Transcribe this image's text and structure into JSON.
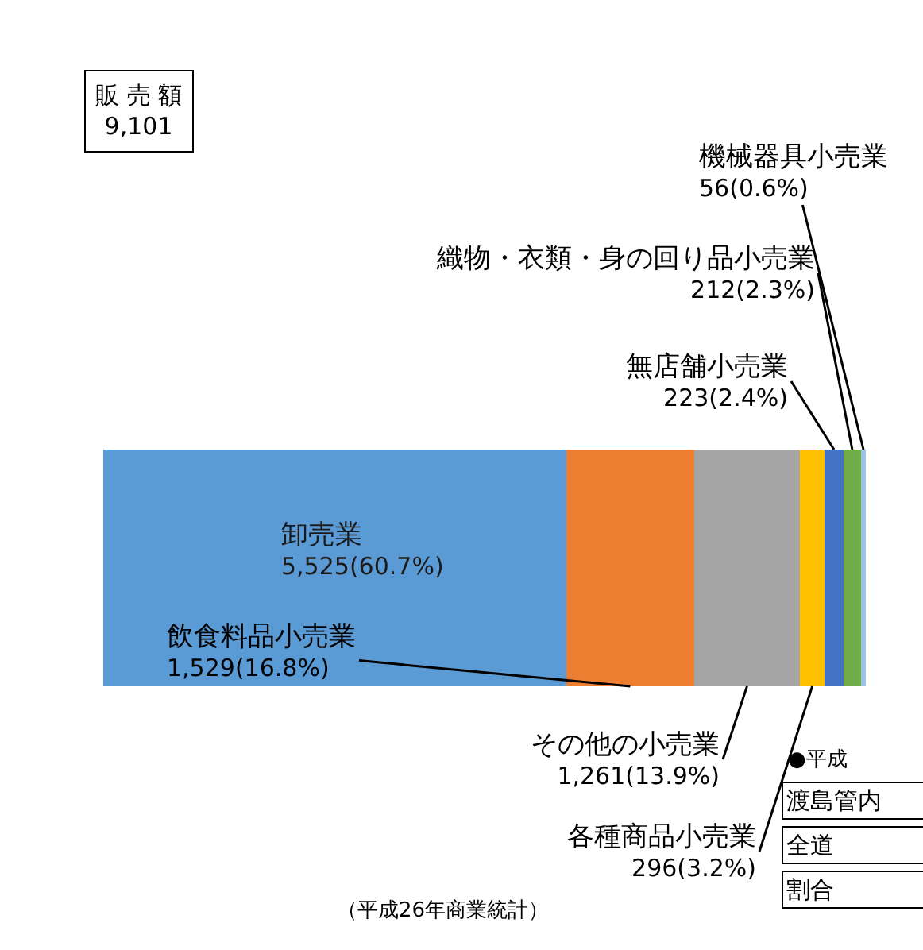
{
  "chart_data": {
    "type": "bar",
    "orientation": "horizontal",
    "stacked": true,
    "title": "販 売 額",
    "subtitle": "9,101",
    "categories": [
      null
    ],
    "series": [
      {
        "name": "卸売業",
        "color": "#5b9bd5",
        "values": [
          5525
        ],
        "value_labels": [
          "5,525(60.7%)"
        ]
      },
      {
        "name": "飲食料品小売業",
        "color": "#ed7d31",
        "values": [
          1529
        ],
        "value_labels": [
          "1,529(16.8%)"
        ]
      },
      {
        "name": "その他の小売業",
        "color": "#a5a5a5",
        "values": [
          1261
        ],
        "value_labels": [
          "1,261(13.9%)"
        ]
      },
      {
        "name": "各種商品小売業",
        "color": "#ffc000",
        "values": [
          296
        ],
        "value_labels": [
          "296(3.2%)"
        ]
      },
      {
        "name": "無店舗小売業",
        "color": "#4472c4",
        "values": [
          223
        ],
        "value_labels": [
          "223(2.4%)"
        ]
      },
      {
        "name": "織物・衣類・身の回り品小売業",
        "color": "#70ad47",
        "values": [
          212
        ],
        "value_labels": [
          "212(2.3%)"
        ]
      },
      {
        "name": "機械器具小売業",
        "color": "#9dc3e6",
        "values": [
          56
        ],
        "value_labels": [
          "56(0.6%)"
        ]
      }
    ],
    "annotations": [
      "（平成26年商業統計）",
      "●平成",
      "渡島管内",
      "全道",
      "割合"
    ],
    "legend": false
  }
}
